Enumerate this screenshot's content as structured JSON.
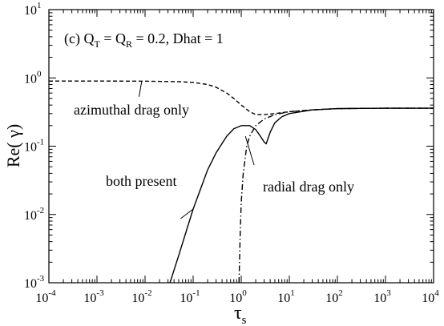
{
  "chart_data": {
    "type": "line",
    "title": "",
    "annotation_parts": {
      "prefix": "(c) Q",
      "q_t_sub": "T",
      "middle": " = Q",
      "q_r_sub": "R",
      "suffix": " = 0.2, Dhat = 1"
    },
    "xlabel_parts": {
      "symbol": "τ",
      "sub": "s"
    },
    "ylabel": "Re( γ)",
    "x_scale": "log",
    "y_scale": "log",
    "xlim": [
      0.0001,
      10000
    ],
    "ylim": [
      0.001,
      10
    ],
    "grid": false,
    "legend": "none",
    "x_ticks": [
      {
        "value": 0.0001,
        "base": "10",
        "exp": "-4"
      },
      {
        "value": 0.001,
        "base": "10",
        "exp": "-3"
      },
      {
        "value": 0.01,
        "base": "10",
        "exp": "-2"
      },
      {
        "value": 0.1,
        "base": "10",
        "exp": "-1"
      },
      {
        "value": 1,
        "base": "10",
        "exp": "0"
      },
      {
        "value": 10,
        "base": "10",
        "exp": "1"
      },
      {
        "value": 100,
        "base": "10",
        "exp": "2"
      },
      {
        "value": 1000,
        "base": "10",
        "exp": "3"
      },
      {
        "value": 10000,
        "base": "10",
        "exp": "4"
      }
    ],
    "y_ticks": [
      {
        "value": 0.001,
        "base": "10",
        "exp": "-3"
      },
      {
        "value": 0.01,
        "base": "10",
        "exp": "-2"
      },
      {
        "value": 0.1,
        "base": "10",
        "exp": "-1"
      },
      {
        "value": 1,
        "base": "10",
        "exp": "0"
      },
      {
        "value": 10,
        "base": "10",
        "exp": "1"
      }
    ],
    "series": [
      {
        "label": "azimuthal drag only",
        "line_style": "dashed",
        "points": [
          [
            0.0001,
            0.9
          ],
          [
            0.001,
            0.9
          ],
          [
            0.01,
            0.895
          ],
          [
            0.05,
            0.88
          ],
          [
            0.1,
            0.86
          ],
          [
            0.2,
            0.8
          ],
          [
            0.3,
            0.73
          ],
          [
            0.5,
            0.6
          ],
          [
            0.7,
            0.5
          ],
          [
            1.0,
            0.4
          ],
          [
            1.5,
            0.32
          ],
          [
            2.0,
            0.29
          ],
          [
            3.0,
            0.29
          ],
          [
            5.0,
            0.3
          ],
          [
            10,
            0.32
          ],
          [
            30,
            0.34
          ],
          [
            100,
            0.355
          ],
          [
            1000,
            0.36
          ],
          [
            10000,
            0.36
          ]
        ]
      },
      {
        "label": "radial drag only",
        "line_style": "dash-dot",
        "points": [
          [
            0.9,
            0.001
          ],
          [
            0.95,
            0.005
          ],
          [
            1.0,
            0.015
          ],
          [
            1.1,
            0.04
          ],
          [
            1.3,
            0.1
          ],
          [
            1.5,
            0.14
          ],
          [
            2.0,
            0.2
          ],
          [
            3.0,
            0.25
          ],
          [
            5.0,
            0.29
          ],
          [
            10,
            0.32
          ],
          [
            30,
            0.34
          ],
          [
            100,
            0.355
          ],
          [
            1000,
            0.36
          ],
          [
            10000,
            0.36
          ]
        ]
      },
      {
        "label": "both present",
        "line_style": "solid",
        "points": [
          [
            0.033,
            0.001
          ],
          [
            0.05,
            0.0025
          ],
          [
            0.1,
            0.012
          ],
          [
            0.2,
            0.045
          ],
          [
            0.3,
            0.08
          ],
          [
            0.5,
            0.14
          ],
          [
            0.7,
            0.18
          ],
          [
            1.0,
            0.2
          ],
          [
            1.5,
            0.2
          ],
          [
            2.0,
            0.175
          ],
          [
            2.5,
            0.14
          ],
          [
            3.0,
            0.115
          ],
          [
            3.3,
            0.108
          ],
          [
            4.0,
            0.16
          ],
          [
            5.0,
            0.22
          ],
          [
            7.0,
            0.27
          ],
          [
            10,
            0.3
          ],
          [
            30,
            0.34
          ],
          [
            100,
            0.355
          ],
          [
            1000,
            0.36
          ],
          [
            10000,
            0.36
          ]
        ]
      }
    ],
    "callouts": [
      {
        "text": "azimuthal drag only",
        "leader_from": [
          0.0075,
          0.53
        ],
        "leader_to": [
          0.0085,
          0.88
        ]
      },
      {
        "text": "both present",
        "leader_from": [
          0.055,
          0.0087
        ],
        "leader_to": [
          0.1,
          0.012
        ]
      },
      {
        "text": "radial drag only",
        "leader_from": [
          1.22,
          0.14
        ],
        "leader_to": [
          1.85,
          0.053
        ]
      }
    ]
  }
}
